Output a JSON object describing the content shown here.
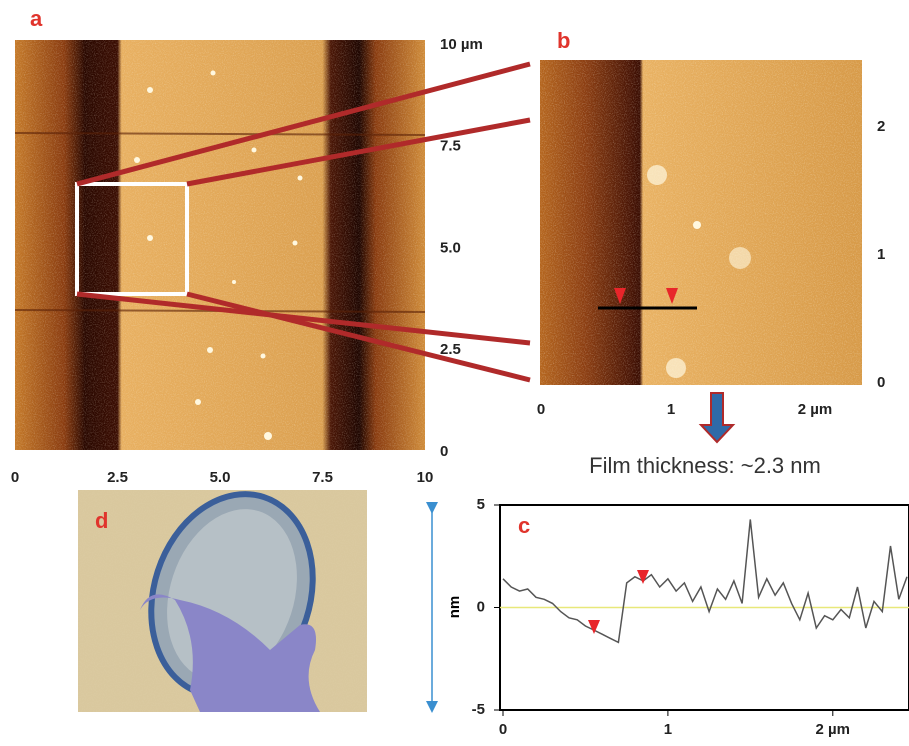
{
  "panel_a": {
    "label": "a",
    "x_ticks": [
      "0",
      "2.5",
      "5.0",
      "7.5",
      "10"
    ],
    "y_ticks": [
      "10 µm",
      "7.5",
      "5.0",
      "2.5",
      "0"
    ]
  },
  "panel_b": {
    "label": "b",
    "x_ticks": [
      "0",
      "1",
      "2 µm"
    ],
    "y_ticks": [
      "2",
      "1",
      "0"
    ]
  },
  "annotation": "Film thickness: ~2.3 nm",
  "panel_c": {
    "label": "c",
    "y_label": "nm",
    "xlim": [
      0,
      2.45
    ],
    "ylim": [
      -5,
      5
    ],
    "xticks": [
      0,
      1,
      {
        "value": 2,
        "label": "2 µm"
      }
    ],
    "yticks": [
      5,
      0,
      -5
    ],
    "profile": {
      "x": [
        0,
        0.05,
        0.1,
        0.15,
        0.2,
        0.25,
        0.3,
        0.35,
        0.4,
        0.45,
        0.5,
        0.55,
        0.6,
        0.65,
        0.7,
        0.75,
        0.8,
        0.85,
        0.9,
        0.95,
        1.0,
        1.05,
        1.1,
        1.15,
        1.2,
        1.25,
        1.3,
        1.35,
        1.4,
        1.45,
        1.5,
        1.55,
        1.6,
        1.65,
        1.7,
        1.75,
        1.8,
        1.85,
        1.9,
        1.95,
        2.0,
        2.05,
        2.1,
        2.15,
        2.2,
        2.25,
        2.3,
        2.35,
        2.4,
        2.45
      ],
      "values": [
        1.4,
        1.0,
        0.8,
        0.9,
        0.5,
        0.4,
        0.2,
        -0.2,
        -0.5,
        -0.6,
        -0.9,
        -1.1,
        -1.3,
        -1.5,
        -1.7,
        1.2,
        1.5,
        1.3,
        1.6,
        1.0,
        1.4,
        0.8,
        1.2,
        0.3,
        1.0,
        -0.2,
        0.9,
        0.4,
        1.3,
        0.2,
        4.3,
        0.5,
        1.4,
        0.6,
        1.2,
        0.2,
        -0.6,
        0.7,
        -1.0,
        -0.4,
        -0.6,
        -0.1,
        -0.5,
        1.0,
        -1.0,
        0.3,
        -0.2,
        3.0,
        0.4,
        1.5
      ]
    }
  },
  "panel_d": {
    "label": "d"
  }
}
